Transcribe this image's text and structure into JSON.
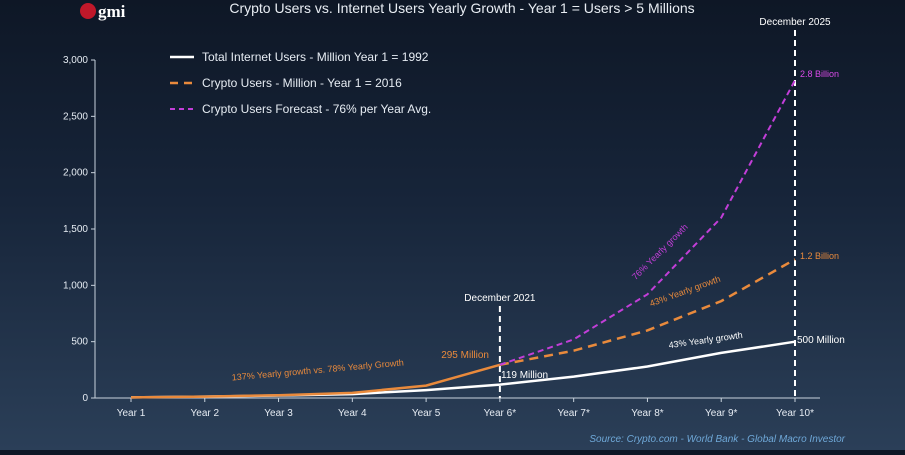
{
  "logo_text": "gmi",
  "chart_data": {
    "type": "line",
    "title": "Crypto Users vs. Internet Users Yearly Growth - Year 1 = Users > 5 Millions",
    "xlabel": "",
    "ylabel": "",
    "categories": [
      "Year 1",
      "Year 2",
      "Year 3",
      "Year 4",
      "Year 5",
      "Year 6*",
      "Year 7*",
      "Year 8*",
      "Year 9*",
      "Year 10*"
    ],
    "ylim": [
      0,
      3000
    ],
    "yticks": [
      0,
      500,
      1000,
      1500,
      2000,
      2500,
      3000
    ],
    "ytick_labels": [
      "0",
      "500",
      "1,000",
      "1,500",
      "2,000",
      "2,500",
      "3,000"
    ],
    "grid": false,
    "legend_position": "top-left",
    "series": [
      {
        "name": "Total Internet Users - Million Year 1 = 1992",
        "color": "#ffffff",
        "style": "solid",
        "values": [
          5,
          12,
          22,
          35,
          70,
          119,
          190,
          280,
          400,
          500
        ]
      },
      {
        "name": "Crypto Users - Million - Year 1 = 2016",
        "color": "#e98a3c",
        "style": "solid-then-dashed",
        "solid_until_index": 5,
        "values": [
          5,
          12,
          25,
          45,
          110,
          295,
          420,
          600,
          860,
          1230
        ]
      },
      {
        "name": "Crypto Users Forecast - 76% per Year Avg.",
        "color": "#c23ed8",
        "style": "dashed",
        "start_index": 5,
        "values": [
          null,
          null,
          null,
          null,
          null,
          295,
          520,
          920,
          1600,
          2820
        ]
      }
    ],
    "vlines": [
      {
        "index": 5,
        "label": "December 2021"
      },
      {
        "index": 9,
        "label": "December 2025"
      }
    ],
    "annotations": [
      {
        "text": "2.8 Billion",
        "color": "#d84ae8"
      },
      {
        "text": "1.2 Billion",
        "color": "#e98a3c"
      },
      {
        "text": "500 Million",
        "color": "#ffffff"
      },
      {
        "text": "295 Million",
        "color": "#e98a3c"
      },
      {
        "text": "119 Million",
        "color": "#ffffff"
      },
      {
        "text": "137% Yearly growth vs. 78% Yearly Growth",
        "color": "#e98a3c"
      },
      {
        "text": "43% Yearly growth",
        "color": "#e98a3c"
      },
      {
        "text": "43% Yearly growth",
        "color": "#ffffff"
      },
      {
        "text": "76% Yearly growth",
        "color": "#c23ed8"
      }
    ],
    "source": "Source: Crypto.com - World Bank - Global Macro Investor"
  }
}
